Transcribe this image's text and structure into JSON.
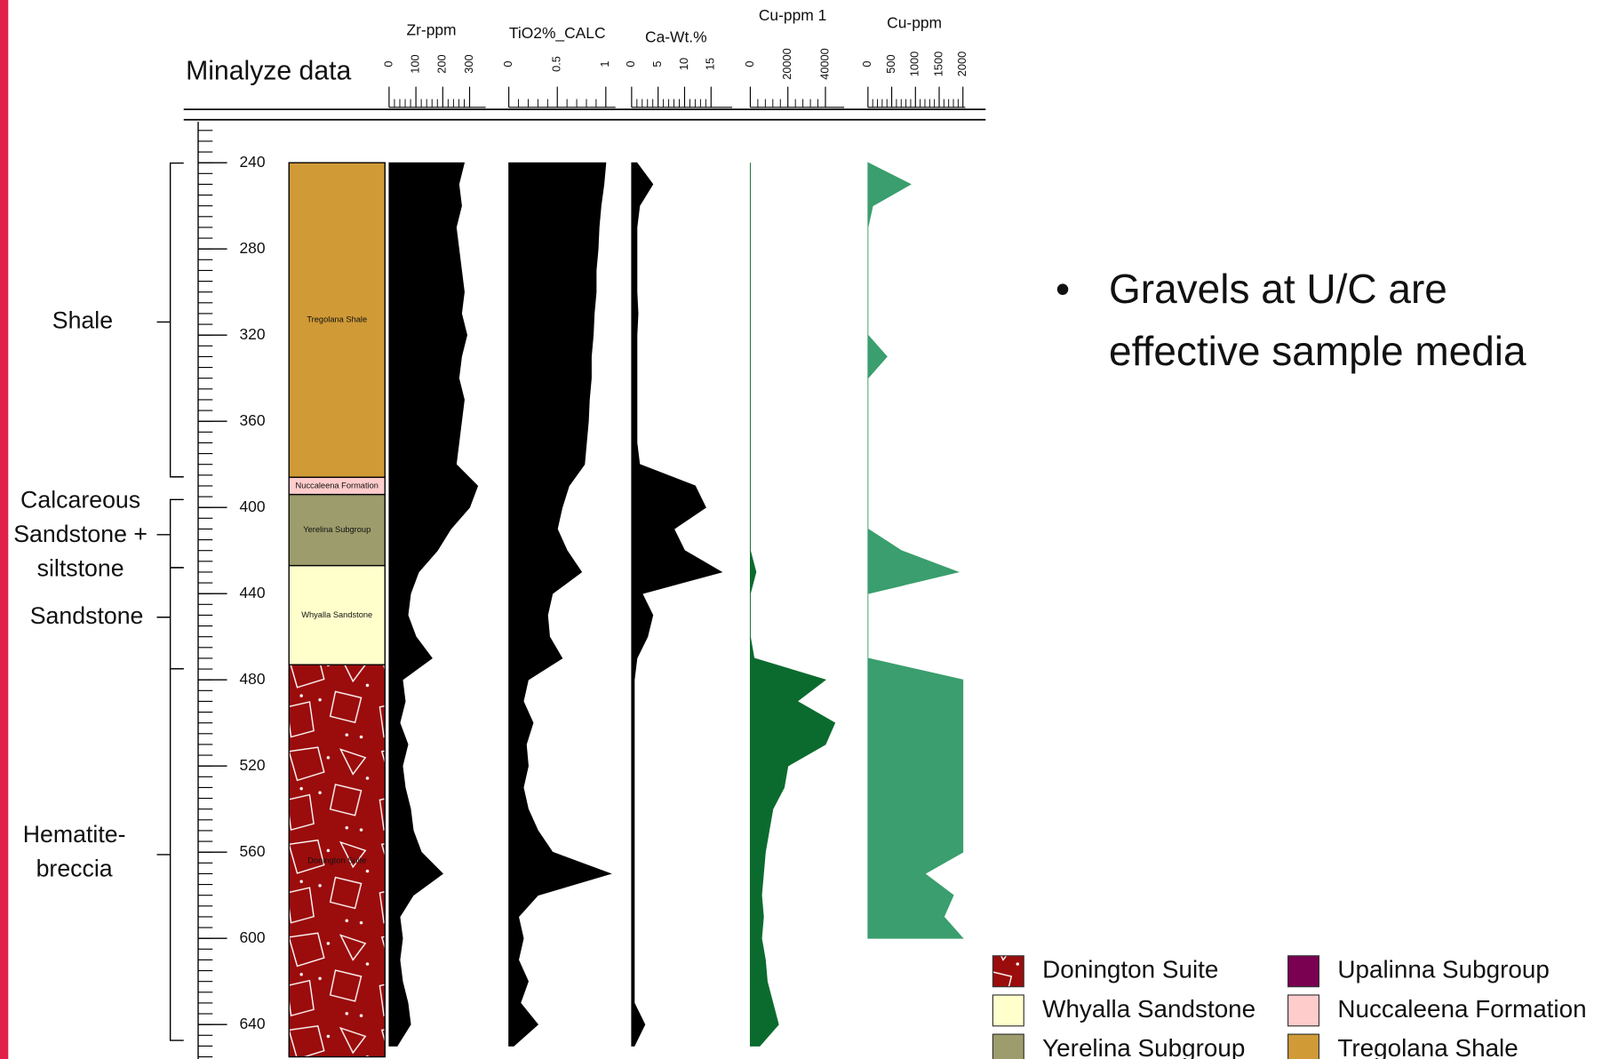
{
  "title": "Minalyze data",
  "bullet": "Gravels at U/C are effective sample media",
  "depth_axis": {
    "xlim": [
      221,
      656
    ],
    "xticks": [
      240,
      280,
      320,
      360,
      400,
      440,
      480,
      520,
      560,
      600,
      640
    ]
  },
  "lithology": [
    {
      "label": "Tregolana Shale",
      "top": 240,
      "base": 386
    },
    {
      "label": "Nuccaleena Formation",
      "top": 386,
      "base": 394
    },
    {
      "label": "Yerelina Subgroup",
      "top": 394,
      "base": 427
    },
    {
      "label": "Whyalla Sandstone",
      "top": 427,
      "base": 473
    },
    {
      "label": "Donington Suite",
      "top": 473,
      "base": 655
    }
  ],
  "annotations": [
    {
      "lines": [
        "Shale"
      ]
    },
    {
      "lines": [
        "Calcareous",
        "Sandstone +",
        "siltstone"
      ]
    },
    {
      "lines": [
        "Sandstone"
      ]
    },
    {
      "lines": [
        "Hematite-",
        "breccia"
      ]
    }
  ],
  "legend": [
    {
      "name": "Donington Suite",
      "color": "#9b0c0c",
      "pattern": "breccia"
    },
    {
      "name": "Whyalla Sandstone",
      "color": "#ffffcc"
    },
    {
      "name": "Yerelina Subgroup",
      "color": "#9c9c6c"
    },
    {
      "name": "Upalinna Subgroup",
      "color": "#7a0052"
    },
    {
      "name": "Nuccaleena Formation",
      "color": "#ffcccc"
    },
    {
      "name": "Tregolana Shale",
      "color": "#d09a36"
    }
  ],
  "chart_data": [
    {
      "type": "area",
      "orientation": "vertical",
      "title": "Zr-ppm",
      "color": "#000000",
      "ylim": [
        0,
        360
      ],
      "yticks": [
        0,
        100,
        200,
        300
      ],
      "x": [
        240,
        250,
        260,
        270,
        280,
        290,
        300,
        310,
        320,
        330,
        340,
        350,
        360,
        370,
        380,
        390,
        400,
        410,
        420,
        430,
        440,
        450,
        460,
        470,
        480,
        490,
        500,
        510,
        520,
        530,
        540,
        550,
        560,
        570,
        580,
        590,
        600,
        610,
        620,
        630,
        640,
        650
      ],
      "values": [
        280,
        260,
        270,
        250,
        260,
        270,
        280,
        270,
        290,
        270,
        260,
        280,
        270,
        260,
        250,
        330,
        300,
        230,
        180,
        110,
        80,
        70,
        100,
        160,
        50,
        60,
        40,
        70,
        50,
        60,
        80,
        90,
        120,
        200,
        90,
        40,
        50,
        40,
        50,
        70,
        80,
        30
      ]
    },
    {
      "type": "area",
      "orientation": "vertical",
      "title": "TiO2%_CALC",
      "color": "#000000",
      "ylim": [
        0,
        1.1
      ],
      "yticks": [
        0,
        0.5,
        1
      ],
      "x": [
        240,
        250,
        260,
        270,
        280,
        290,
        300,
        310,
        320,
        330,
        340,
        350,
        360,
        370,
        380,
        390,
        400,
        410,
        420,
        430,
        440,
        450,
        460,
        470,
        480,
        490,
        500,
        510,
        520,
        530,
        540,
        550,
        560,
        570,
        580,
        590,
        600,
        610,
        620,
        630,
        640,
        650
      ],
      "values": [
        1.0,
        0.98,
        0.95,
        0.93,
        0.92,
        0.9,
        0.9,
        0.88,
        0.87,
        0.85,
        0.85,
        0.83,
        0.82,
        0.8,
        0.78,
        0.62,
        0.55,
        0.5,
        0.6,
        0.75,
        0.45,
        0.4,
        0.42,
        0.55,
        0.2,
        0.15,
        0.25,
        0.18,
        0.2,
        0.15,
        0.2,
        0.3,
        0.45,
        1.05,
        0.3,
        0.1,
        0.15,
        0.1,
        0.2,
        0.12,
        0.3,
        0.05
      ]
    },
    {
      "type": "area",
      "orientation": "vertical",
      "title": "Ca-Wt.%",
      "color": "#000000",
      "ylim": [
        0,
        19
      ],
      "yticks": [
        0,
        5,
        10,
        15
      ],
      "x": [
        240,
        250,
        260,
        270,
        280,
        290,
        300,
        310,
        320,
        330,
        340,
        350,
        360,
        370,
        380,
        390,
        400,
        410,
        420,
        430,
        440,
        450,
        460,
        470,
        480,
        490,
        500,
        510,
        520,
        530,
        540,
        550,
        560,
        570,
        580,
        590,
        600,
        610,
        620,
        630,
        640,
        650
      ],
      "values": [
        1,
        4,
        1.5,
        1,
        1,
        1,
        1,
        1.2,
        1,
        1,
        1,
        1,
        1,
        1,
        1.5,
        12,
        14,
        8,
        10,
        17,
        2,
        4,
        3,
        1,
        0.5,
        0.5,
        0.5,
        0.5,
        0.5,
        0.5,
        0.5,
        0.5,
        0.5,
        0.5,
        0.5,
        0.5,
        0.5,
        0.5,
        0.5,
        0.5,
        2.5,
        0.5
      ]
    },
    {
      "type": "area",
      "orientation": "vertical",
      "title": "Cu-ppm 1",
      "color": "#0b6b2e",
      "ylim": [
        0,
        50000
      ],
      "yticks": [
        0,
        20000,
        40000
      ],
      "x": [
        240,
        250,
        260,
        270,
        280,
        290,
        300,
        310,
        320,
        330,
        340,
        350,
        360,
        370,
        380,
        390,
        400,
        410,
        420,
        430,
        440,
        450,
        460,
        470,
        480,
        490,
        500,
        510,
        520,
        530,
        540,
        550,
        560,
        570,
        580,
        590,
        600,
        610,
        620,
        630,
        640,
        650
      ],
      "values": [
        0,
        0,
        0,
        0,
        0,
        0,
        0,
        0,
        0,
        0,
        0,
        0,
        0,
        0,
        0,
        0,
        0,
        0,
        0,
        3000,
        0,
        0,
        0,
        2000,
        40000,
        25000,
        45000,
        40000,
        20000,
        18000,
        12000,
        10000,
        8000,
        7000,
        6000,
        7000,
        6000,
        8000,
        9000,
        12000,
        15000,
        5000
      ]
    },
    {
      "type": "area",
      "orientation": "vertical",
      "title": "Cu-ppm",
      "color": "#3a9e6e",
      "ylim": [
        0,
        2050
      ],
      "yticks": [
        0,
        500,
        1000,
        1500,
        2000
      ],
      "x": [
        240,
        250,
        260,
        270,
        280,
        290,
        300,
        310,
        320,
        330,
        340,
        350,
        360,
        370,
        380,
        390,
        400,
        410,
        420,
        430,
        440,
        450,
        460,
        470,
        480,
        490,
        500,
        510,
        520,
        530,
        540,
        550,
        560,
        570,
        580,
        590,
        600,
        610,
        620,
        630,
        640,
        650
      ],
      "values": [
        0,
        900,
        100,
        0,
        0,
        0,
        0,
        0,
        0,
        400,
        0,
        0,
        0,
        0,
        0,
        0,
        0,
        0,
        700,
        1900,
        0,
        0,
        0,
        0,
        2000,
        2000,
        2000,
        2000,
        2000,
        2000,
        2000,
        2000,
        2000,
        1200,
        1800,
        1600,
        2000,
        null,
        null,
        null,
        null,
        null
      ]
    }
  ]
}
